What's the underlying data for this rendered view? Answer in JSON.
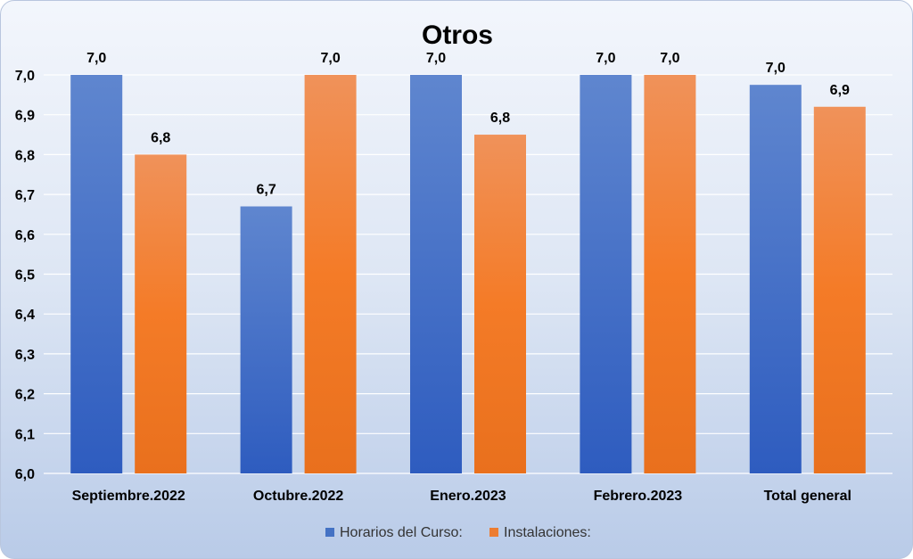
{
  "chart_data": {
    "type": "bar",
    "title": "Otros",
    "xlabel": "",
    "ylabel": "",
    "ylim": [
      6.0,
      7.0
    ],
    "yticks": [
      "6,0",
      "6,1",
      "6,2",
      "6,3",
      "6,4",
      "6,5",
      "6,6",
      "6,7",
      "6,8",
      "6,9",
      "7,0"
    ],
    "categories": [
      "Septiembre.2022",
      "Octubre.2022",
      "Enero.2023",
      "Febrero.2023",
      "Total general"
    ],
    "series": [
      {
        "name": "Horarios del Curso:",
        "color": "#4472c4",
        "values": [
          7.0,
          6.67,
          7.0,
          7.0,
          6.975
        ],
        "labels": [
          "7,0",
          "6,7",
          "7,0",
          "7,0",
          "7,0"
        ]
      },
      {
        "name": "Instalaciones:",
        "color": "#ed7d31",
        "values": [
          6.8,
          7.0,
          6.85,
          7.0,
          6.92
        ],
        "labels": [
          "6,8",
          "7,0",
          "6,8",
          "7,0",
          "6,9"
        ]
      }
    ],
    "grid": true,
    "legend": "bottom"
  }
}
